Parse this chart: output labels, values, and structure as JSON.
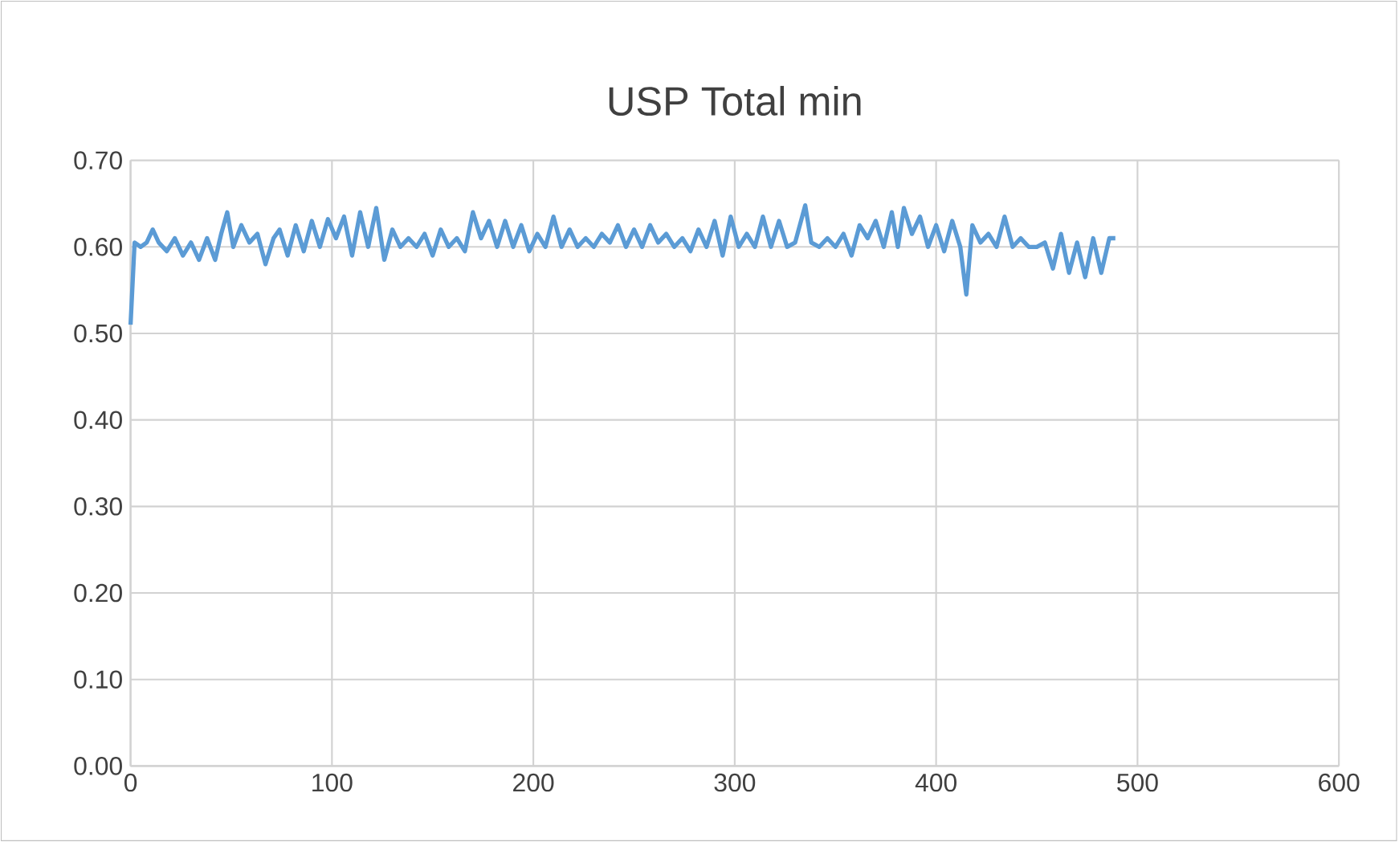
{
  "chart_data": {
    "type": "line",
    "title": "USP Total min",
    "xlim": [
      0,
      600
    ],
    "xticks": [
      0,
      100,
      200,
      300,
      400,
      500,
      600
    ],
    "ylim": [
      0,
      0.7
    ],
    "yticks": [
      {
        "value": 0,
        "label": "0.00"
      },
      {
        "value": 0.1,
        "label": "0.10"
      },
      {
        "value": 0.2,
        "label": "0.20"
      },
      {
        "value": 0.3,
        "label": "0.30"
      },
      {
        "value": 0.4,
        "label": "0.40"
      },
      {
        "value": 0.5,
        "label": "0.50"
      },
      {
        "value": 0.6,
        "label": "0.60"
      },
      {
        "value": 0.7,
        "label": "0.70"
      }
    ],
    "grid": true,
    "series": [
      {
        "color": "#5b9bd5",
        "x": [
          0,
          2,
          5,
          8,
          11,
          14,
          18,
          22,
          26,
          30,
          34,
          38,
          42,
          45,
          48,
          51,
          55,
          59,
          63,
          67,
          71,
          74,
          78,
          82,
          86,
          90,
          94,
          98,
          102,
          106,
          110,
          114,
          118,
          122,
          126,
          130,
          134,
          138,
          142,
          146,
          150,
          154,
          158,
          162,
          166,
          170,
          174,
          178,
          182,
          186,
          190,
          194,
          198,
          202,
          206,
          210,
          214,
          218,
          222,
          226,
          230,
          234,
          238,
          242,
          246,
          250,
          254,
          258,
          262,
          266,
          270,
          274,
          278,
          282,
          286,
          290,
          294,
          298,
          302,
          306,
          310,
          314,
          318,
          322,
          326,
          330,
          335,
          338,
          342,
          346,
          350,
          354,
          358,
          362,
          366,
          370,
          374,
          378,
          381,
          384,
          388,
          392,
          396,
          400,
          404,
          408,
          412,
          415,
          418,
          422,
          426,
          430,
          434,
          438,
          442,
          446,
          450,
          454,
          458,
          462,
          466,
          470,
          474,
          478,
          482,
          486,
          489
        ],
        "values": [
          0.51,
          0.605,
          0.6,
          0.605,
          0.62,
          0.605,
          0.595,
          0.61,
          0.59,
          0.605,
          0.585,
          0.61,
          0.585,
          0.615,
          0.64,
          0.6,
          0.625,
          0.605,
          0.615,
          0.58,
          0.61,
          0.62,
          0.59,
          0.625,
          0.595,
          0.63,
          0.6,
          0.632,
          0.61,
          0.635,
          0.59,
          0.64,
          0.6,
          0.645,
          0.585,
          0.62,
          0.6,
          0.61,
          0.6,
          0.615,
          0.59,
          0.62,
          0.6,
          0.61,
          0.595,
          0.64,
          0.61,
          0.63,
          0.6,
          0.63,
          0.6,
          0.625,
          0.595,
          0.615,
          0.6,
          0.635,
          0.6,
          0.62,
          0.6,
          0.61,
          0.6,
          0.615,
          0.605,
          0.625,
          0.6,
          0.62,
          0.6,
          0.625,
          0.605,
          0.615,
          0.6,
          0.61,
          0.595,
          0.62,
          0.6,
          0.63,
          0.59,
          0.635,
          0.6,
          0.615,
          0.6,
          0.635,
          0.6,
          0.63,
          0.6,
          0.605,
          0.648,
          0.605,
          0.6,
          0.61,
          0.6,
          0.615,
          0.59,
          0.625,
          0.61,
          0.63,
          0.6,
          0.64,
          0.6,
          0.645,
          0.615,
          0.635,
          0.6,
          0.625,
          0.595,
          0.63,
          0.6,
          0.545,
          0.625,
          0.605,
          0.615,
          0.6,
          0.635,
          0.6,
          0.61,
          0.6,
          0.6,
          0.605,
          0.575,
          0.615,
          0.57,
          0.605,
          0.565,
          0.61,
          0.57,
          0.61,
          0.61
        ]
      }
    ]
  }
}
